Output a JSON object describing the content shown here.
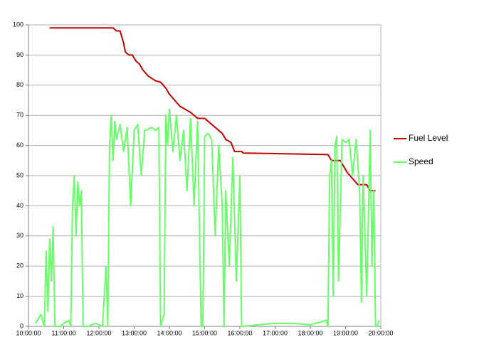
{
  "chart_data": {
    "type": "line",
    "xlim": [
      10,
      20
    ],
    "xticks": [
      {
        "value": 10,
        "label": "10:00:00"
      },
      {
        "value": 11,
        "label": "11:00:00"
      },
      {
        "value": 12,
        "label": "12:00:00"
      },
      {
        "value": 13,
        "label": "13:00:00"
      },
      {
        "value": 14,
        "label": "14:00:00"
      },
      {
        "value": 15,
        "label": "15:00:00"
      },
      {
        "value": 16,
        "label": "16:00:00"
      },
      {
        "value": 17,
        "label": "17:00:00"
      },
      {
        "value": 18,
        "label": "18:00:00"
      },
      {
        "value": 19,
        "label": "19:00:00"
      },
      {
        "value": 20,
        "label": "20:00:00"
      }
    ],
    "ylim": [
      0,
      100
    ],
    "yticks": [
      0,
      10,
      20,
      30,
      40,
      50,
      60,
      70,
      80,
      90,
      100
    ],
    "grid": true,
    "legend": "right",
    "series": [
      {
        "name": "Fuel Level",
        "color": "#c00000",
        "x": [
          10.6,
          12.4,
          12.5,
          12.6,
          12.7,
          12.75,
          12.85,
          12.95,
          13.05,
          13.15,
          13.25,
          13.4,
          13.6,
          13.75,
          13.9,
          14.0,
          14.15,
          14.3,
          14.45,
          14.6,
          14.8,
          15.0,
          15.1,
          15.3,
          15.5,
          15.6,
          15.75,
          15.85,
          16.05,
          16.1,
          18.5,
          18.6,
          18.85,
          18.95,
          19.05,
          19.2,
          19.35,
          19.6,
          19.7,
          19.85
        ],
        "values": [
          99,
          99,
          98,
          98,
          94,
          91,
          90,
          90,
          88,
          87,
          85,
          83,
          81.5,
          81,
          79,
          77,
          75,
          73,
          72,
          71,
          69,
          69,
          68,
          66,
          64,
          62,
          61,
          58,
          58,
          57.5,
          57,
          55,
          55,
          53,
          51,
          49,
          47,
          47,
          45,
          45
        ]
      },
      {
        "name": "Speed",
        "color": "#66ff66",
        "x": [
          10.2,
          10.35,
          10.45,
          10.5,
          10.55,
          10.6,
          10.65,
          10.7,
          10.75,
          10.9,
          11.0,
          11.15,
          11.2,
          11.25,
          11.3,
          11.35,
          11.4,
          11.45,
          11.5,
          11.55,
          11.7,
          11.9,
          12.1,
          12.2,
          12.25,
          12.3,
          12.35,
          12.4,
          12.45,
          12.5,
          12.6,
          12.7,
          12.8,
          12.9,
          13.0,
          13.1,
          13.2,
          13.3,
          13.5,
          13.6,
          13.7,
          13.75,
          13.85,
          13.9,
          13.95,
          14.0,
          14.1,
          14.2,
          14.3,
          14.4,
          14.5,
          14.6,
          14.7,
          14.8,
          14.9,
          14.95,
          15.0,
          15.1,
          15.2,
          15.3,
          15.4,
          15.5,
          15.55,
          15.6,
          15.7,
          15.8,
          15.9,
          16.0,
          16.05,
          16.1,
          16.5,
          17.0,
          17.5,
          18.0,
          18.45,
          18.5,
          18.55,
          18.6,
          18.65,
          18.7,
          18.75,
          18.8,
          18.9,
          19.0,
          19.1,
          19.2,
          19.3,
          19.4,
          19.45,
          19.5,
          19.6,
          19.7,
          19.75,
          19.8,
          19.85,
          19.9,
          19.95
        ],
        "values": [
          1,
          4,
          0,
          25,
          5,
          29,
          15,
          33,
          0,
          0,
          1,
          2,
          0,
          40,
          50,
          30,
          48,
          40,
          45,
          0,
          0,
          1,
          0,
          20,
          0,
          60,
          70,
          55,
          68,
          62,
          67,
          58,
          66,
          40,
          65,
          67,
          50,
          65,
          66,
          65,
          66,
          0,
          4,
          70,
          60,
          72,
          58,
          70,
          55,
          65,
          45,
          69,
          40,
          68,
          0,
          0,
          63,
          64,
          62,
          30,
          60,
          40,
          0,
          45,
          20,
          56,
          15,
          50,
          0,
          0,
          0.5,
          1,
          1,
          0.5,
          2,
          0,
          50,
          55,
          10,
          60,
          63,
          15,
          62,
          61,
          62,
          50,
          62,
          45,
          8,
          50,
          10,
          65,
          20,
          45,
          0,
          0,
          2
        ]
      }
    ]
  }
}
